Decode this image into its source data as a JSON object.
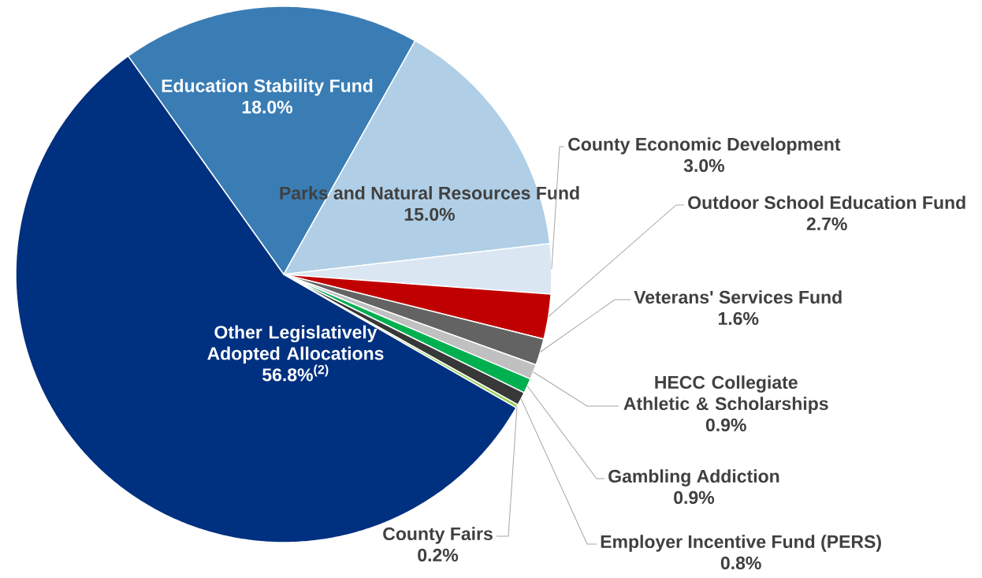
{
  "chart_data": {
    "type": "pie",
    "categories": [
      "Education Stability Fund",
      "Parks and Natural Resources Fund",
      "County Economic Development",
      "Outdoor School Education Fund",
      "Veterans' Services Fund",
      "HECC Collegiate Athletic & Scholarships",
      "Gambling Addiction",
      "Employer Incentive Fund (PERS)",
      "County Fairs",
      "Other Legislatively Adopted Allocations"
    ],
    "values": [
      18.0,
      15.0,
      3.0,
      2.7,
      1.6,
      0.9,
      0.9,
      0.8,
      0.2,
      56.8
    ],
    "value_labels": [
      "18.0%",
      "15.0%",
      "3.0%",
      "2.7%",
      "1.6%",
      "0.9%",
      "0.9%",
      "0.8%",
      "0.2%",
      "56.8%$^{(2)}$"
    ],
    "colors": [
      "#3a7db5",
      "#b0cfe6",
      "#dae6f1",
      "#c00000",
      "#636363",
      "#c0c0c0",
      "#00b050",
      "#383838",
      "#92d050",
      "#003080"
    ]
  }
}
